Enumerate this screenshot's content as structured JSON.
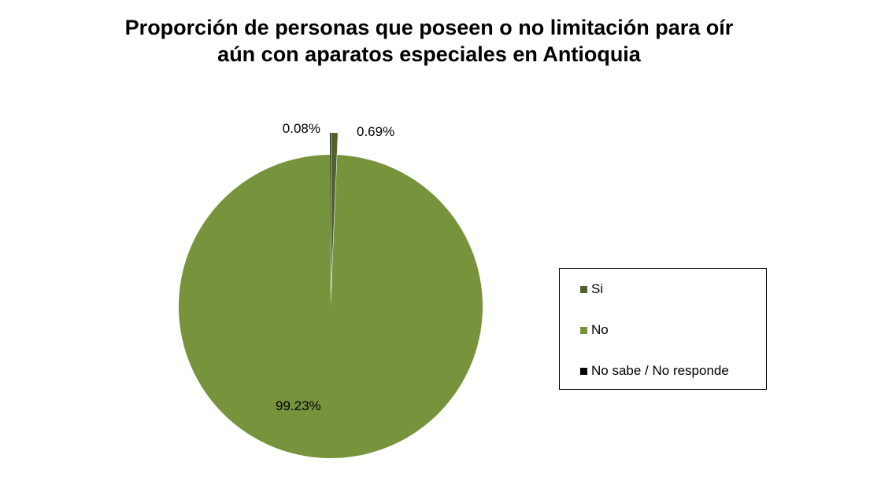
{
  "chart_data": {
    "type": "pie",
    "title_lines": [
      "Proporción de personas que poseen o no limitación para oír",
      "aún con aparatos especiales en Antioquia"
    ],
    "slices": [
      {
        "name": "Si",
        "value": 0.69,
        "label": "0.69%",
        "color": "#4f6228"
      },
      {
        "name": "No",
        "value": 99.23,
        "label": "99.23%",
        "color": "#77933c"
      },
      {
        "name": "No sabe / No responde",
        "value": 0.08,
        "label": "0.08%",
        "color": "#000000"
      }
    ],
    "legend_position": "right"
  }
}
